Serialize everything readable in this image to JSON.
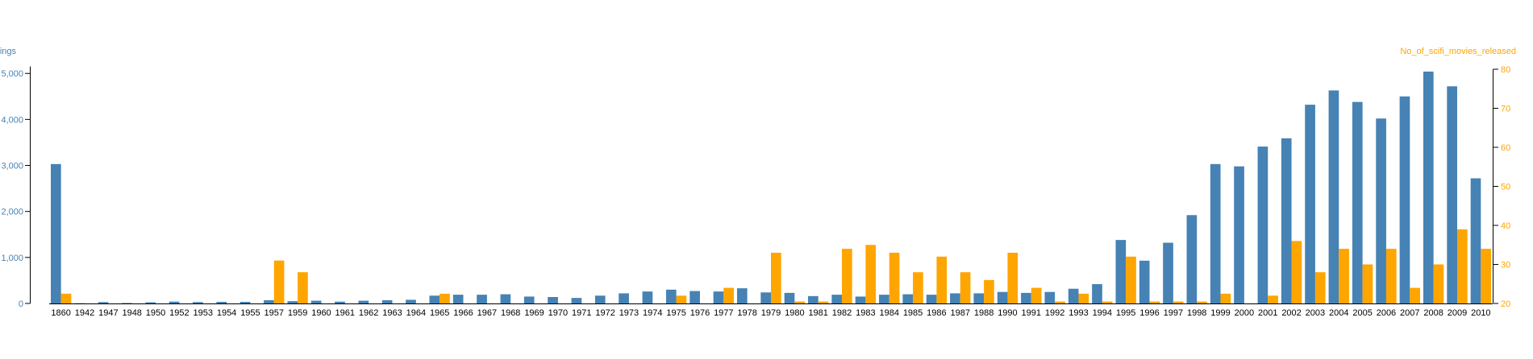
{
  "chart_data": {
    "type": "bar",
    "categories": [
      "1860",
      "1942",
      "1947",
      "1948",
      "1950",
      "1952",
      "1953",
      "1954",
      "1955",
      "1957",
      "1959",
      "1960",
      "1961",
      "1962",
      "1963",
      "1964",
      "1965",
      "1966",
      "1967",
      "1968",
      "1969",
      "1970",
      "1971",
      "1972",
      "1973",
      "1974",
      "1975",
      "1976",
      "1977",
      "1978",
      "1979",
      "1980",
      "1981",
      "1982",
      "1983",
      "1984",
      "1985",
      "1986",
      "1987",
      "1988",
      "1990",
      "1991",
      "1992",
      "1993",
      "1994",
      "1995",
      "1996",
      "1997",
      "1998",
      "1999",
      "2000",
      "2001",
      "2002",
      "2003",
      "2004",
      "2005",
      "2006",
      "2007",
      "2008",
      "2009",
      "2010"
    ],
    "series": [
      {
        "name": "UFO Sightings",
        "axis": "left",
        "color": "#4682b4",
        "values": [
          3030,
          5,
          30,
          10,
          25,
          40,
          30,
          35,
          35,
          70,
          50,
          60,
          40,
          60,
          70,
          80,
          170,
          190,
          190,
          200,
          150,
          140,
          120,
          170,
          220,
          260,
          300,
          270,
          260,
          330,
          240,
          230,
          160,
          190,
          150,
          190,
          200,
          190,
          220,
          220,
          250,
          230,
          250,
          320,
          420,
          1380,
          930,
          1320,
          1920,
          3030,
          2980,
          3410,
          3590,
          4320,
          4630,
          4380,
          4020,
          4500,
          5040,
          4720,
          2720
        ]
      },
      {
        "name": "No_of_scifi_movies_released",
        "axis": "right",
        "color": "#ffa500",
        "values": [
          22.5,
          20,
          20,
          20,
          20,
          20,
          20,
          20,
          20,
          31,
          28,
          20,
          20,
          20,
          20,
          20,
          22.5,
          20,
          20,
          20,
          20,
          20,
          20,
          20,
          20,
          20,
          22,
          20,
          24,
          20,
          33,
          20.5,
          20.5,
          34,
          35,
          33,
          28,
          32,
          28,
          26,
          33,
          24,
          20.5,
          22.5,
          20.5,
          32,
          20.5,
          20.5,
          20.5,
          22.5,
          20,
          22,
          36,
          28,
          34,
          30,
          34,
          24,
          30,
          39,
          34
        ]
      }
    ],
    "ylabel_left": "UFO Sightings",
    "ylabel_right": "No_of_scifi_movies_released",
    "ylim_left": [
      0,
      5100
    ],
    "ylim_right": [
      20,
      80
    ],
    "yticks_left": [
      "0",
      "1,000",
      "2,000",
      "3,000",
      "4,000",
      "5,000"
    ],
    "yticks_left_values": [
      0,
      1000,
      2000,
      3000,
      4000,
      5000
    ],
    "yticks_right": [
      "20",
      "30",
      "40",
      "50",
      "60",
      "70",
      "80"
    ],
    "yticks_right_values": [
      20,
      30,
      40,
      50,
      60,
      70,
      80
    ],
    "grid": false,
    "legend": "none"
  }
}
